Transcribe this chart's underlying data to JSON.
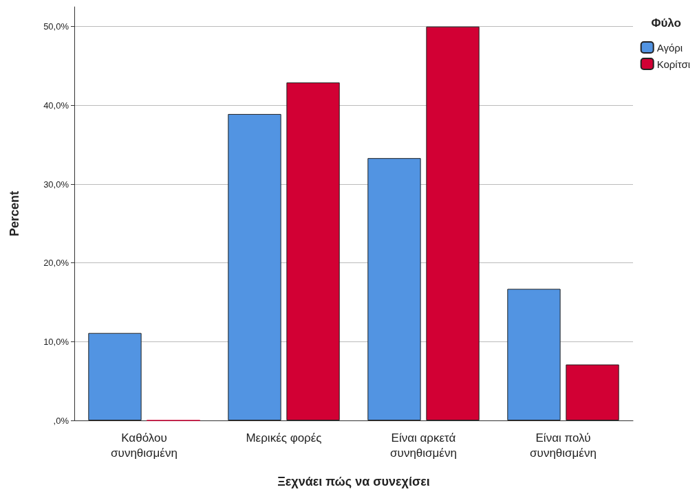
{
  "chart_data": {
    "type": "bar",
    "xlabel": "Ξεχνάει πώς να συνεχίσει",
    "ylabel": "Percent",
    "legend_title": "Φύλο",
    "categories": [
      "Καθόλου συνηθισμένη",
      "Μερικές φορές",
      "Είναι αρκετά συνηθισμένη",
      "Είναι πολύ συνηθισμένη"
    ],
    "series": [
      {
        "name": "Αγόρι",
        "color": "#5294e2",
        "values": [
          11.1,
          38.9,
          33.3,
          16.7
        ]
      },
      {
        "name": "Κορίτσι",
        "color": "#d20034",
        "values": [
          0,
          42.9,
          50.0,
          7.1
        ]
      }
    ],
    "ylim": [
      0,
      52.5
    ],
    "yticks": [
      {
        "value": 0,
        "label": ",0%"
      },
      {
        "value": 10,
        "label": "10,0%"
      },
      {
        "value": 20,
        "label": "20,0%"
      },
      {
        "value": 30,
        "label": "30,0%"
      },
      {
        "value": 40,
        "label": "40,0%"
      },
      {
        "value": 50,
        "label": "50,0%"
      }
    ],
    "grid": "y",
    "legend": "top right"
  }
}
